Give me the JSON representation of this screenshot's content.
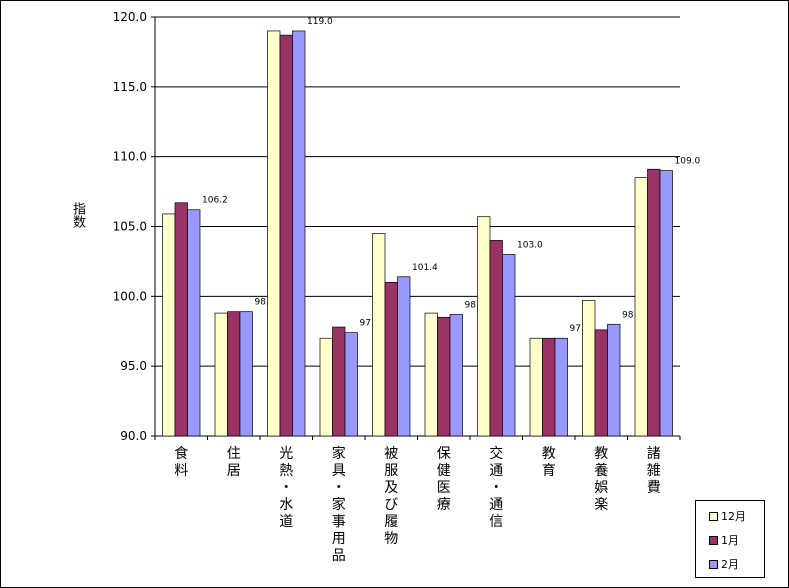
{
  "chart_data": {
    "type": "bar",
    "ylabel": "指数",
    "ylim": [
      90.0,
      120.0
    ],
    "yticks": [
      "90.0",
      "95.0",
      "100.0",
      "105.0",
      "110.0",
      "115.0",
      "120.0"
    ],
    "grid": true,
    "legend_position": "bottom-right",
    "categories": [
      "食料",
      "住居",
      "光熱・水道",
      "家具・家事用品",
      "被服及び履物",
      "保健医療",
      "交通・通信",
      "教育",
      "教養娯楽",
      "諸雑費"
    ],
    "series": [
      {
        "name": "12月",
        "color": "#FFFFCC",
        "values": [
          105.9,
          98.8,
          119.0,
          97.0,
          104.5,
          98.8,
          105.7,
          97.0,
          99.7,
          108.5
        ]
      },
      {
        "name": "1月",
        "color": "#993366",
        "values": [
          106.7,
          98.9,
          118.7,
          97.8,
          101.0,
          98.5,
          104.0,
          97.0,
          97.6,
          109.1
        ]
      },
      {
        "name": "2月",
        "color": "#9999FF",
        "values": [
          106.2,
          98.9,
          119.0,
          97.4,
          101.4,
          98.7,
          103.0,
          97.0,
          98.0,
          109.0
        ]
      }
    ],
    "data_labels_series": "2月",
    "data_labels": [
      "106.2",
      "98.9",
      "119.0",
      "97.4",
      "101.4",
      "98.7",
      "103.0",
      "97.0",
      "98.0",
      "109.0"
    ]
  }
}
